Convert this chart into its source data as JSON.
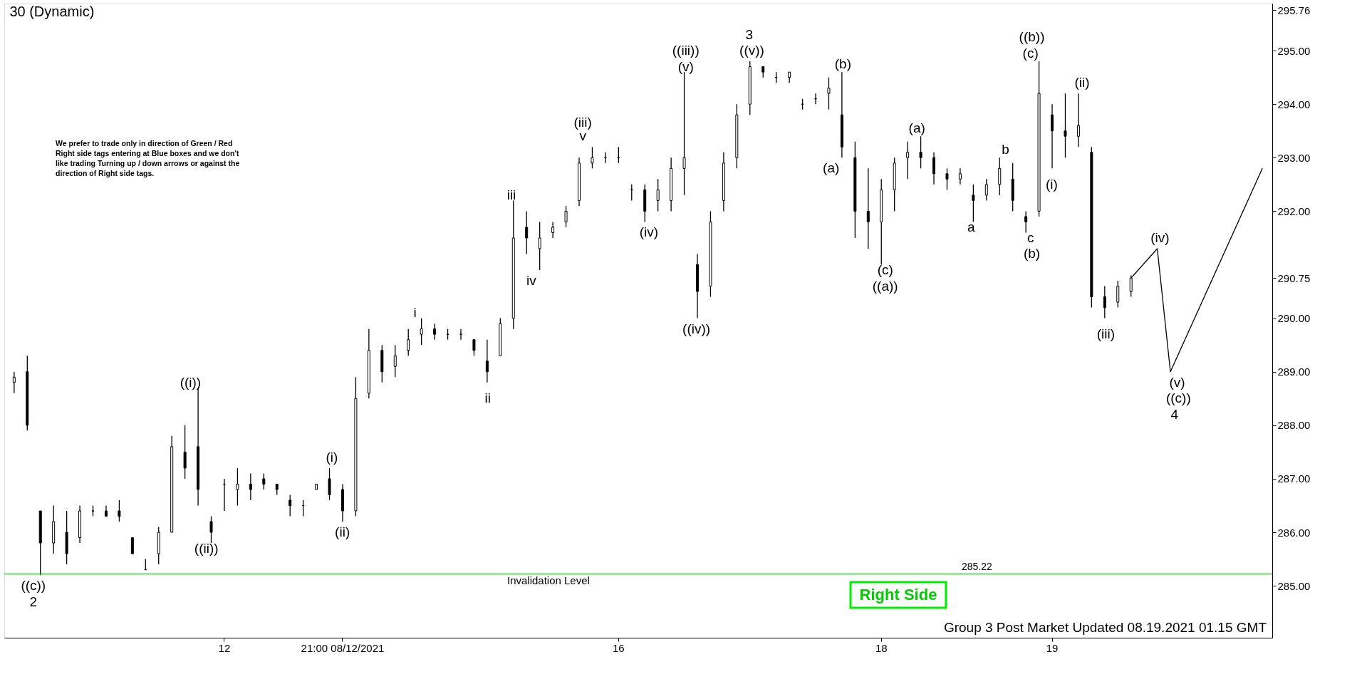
{
  "chart_data": {
    "type": "candlestick",
    "title": "30 (Dynamic)",
    "color": "#000000",
    "categories": [
      null,
      null,
      null,
      null,
      null,
      null,
      null,
      null,
      null,
      null,
      null,
      null,
      null,
      null,
      null,
      null,
      "12",
      null,
      null,
      null,
      null,
      null,
      null,
      null,
      null,
      "21:00 08/12/2021",
      null,
      null,
      null,
      null,
      null,
      null,
      null,
      null,
      null,
      null,
      null,
      null,
      null,
      null,
      null,
      null,
      null,
      null,
      null,
      null,
      "16",
      null,
      null,
      null,
      null,
      null,
      null,
      null,
      null,
      null,
      null,
      null,
      null,
      null,
      null,
      null,
      null,
      null,
      null,
      null,
      "18",
      null,
      null,
      null,
      null,
      null,
      null,
      null,
      null,
      null,
      null,
      null,
      null,
      "19",
      null,
      null,
      null,
      null,
      null,
      null,
      null,
      null,
      null,
      null,
      null,
      null,
      null,
      null,
      null,
      null
    ],
    "ohlc": [
      [
        288.8,
        289.0,
        288.6,
        288.9
      ],
      [
        289.0,
        289.3,
        287.9,
        288.0
      ],
      [
        286.4,
        286.4,
        285.2,
        285.8
      ],
      [
        285.8,
        286.5,
        285.6,
        286.2
      ],
      [
        286.0,
        286.4,
        285.4,
        285.6
      ],
      [
        285.9,
        286.5,
        285.8,
        286.4
      ],
      [
        286.4,
        286.5,
        286.3,
        286.4
      ],
      [
        286.4,
        286.5,
        286.3,
        286.3
      ],
      [
        286.4,
        286.6,
        286.2,
        286.3
      ],
      [
        285.9,
        285.9,
        285.6,
        285.6
      ],
      [
        285.3,
        285.5,
        285.3,
        285.3
      ],
      [
        285.6,
        286.1,
        285.4,
        286.0
      ],
      [
        286.0,
        287.8,
        286.0,
        287.6
      ],
      [
        287.5,
        288.0,
        287.0,
        287.2
      ],
      [
        287.6,
        288.7,
        286.5,
        286.8
      ],
      [
        286.2,
        286.3,
        285.8,
        286.0
      ],
      [
        286.9,
        287.0,
        286.4,
        286.9
      ],
      [
        286.8,
        287.2,
        286.5,
        286.9
      ],
      [
        286.9,
        287.1,
        286.6,
        286.8
      ],
      [
        287.0,
        287.1,
        286.8,
        286.9
      ],
      [
        286.9,
        286.9,
        286.7,
        286.8
      ],
      [
        286.6,
        286.7,
        286.3,
        286.5
      ],
      [
        286.5,
        286.6,
        286.3,
        286.5
      ],
      [
        286.8,
        286.9,
        286.8,
        286.9
      ],
      [
        287.0,
        287.2,
        286.6,
        286.7
      ],
      [
        286.8,
        286.9,
        286.2,
        286.4
      ],
      [
        286.4,
        288.9,
        286.3,
        288.5
      ],
      [
        288.6,
        289.8,
        288.5,
        289.4
      ],
      [
        289.4,
        289.5,
        288.8,
        289.0
      ],
      [
        289.1,
        289.5,
        288.9,
        289.3
      ],
      [
        289.4,
        289.8,
        289.3,
        289.6
      ],
      [
        289.7,
        290.0,
        289.5,
        289.8
      ],
      [
        289.8,
        289.9,
        289.6,
        289.7
      ],
      [
        289.7,
        289.8,
        289.6,
        289.7
      ],
      [
        289.7,
        289.8,
        289.6,
        289.7
      ],
      [
        289.6,
        289.6,
        289.3,
        289.4
      ],
      [
        289.2,
        289.6,
        288.8,
        289.0
      ],
      [
        289.3,
        290.0,
        289.3,
        289.9
      ],
      [
        290.0,
        292.2,
        289.8,
        291.5
      ],
      [
        291.7,
        292.0,
        291.2,
        291.5
      ],
      [
        291.3,
        291.8,
        290.9,
        291.5
      ],
      [
        291.6,
        291.8,
        291.5,
        291.7
      ],
      [
        291.8,
        292.1,
        291.7,
        292.0
      ],
      [
        292.2,
        293.0,
        292.1,
        292.9
      ],
      [
        292.9,
        293.2,
        292.8,
        293.0
      ],
      [
        293.0,
        293.1,
        292.9,
        293.0
      ],
      [
        293.0,
        293.2,
        292.9,
        293.0
      ],
      [
        292.4,
        292.5,
        292.2,
        292.4
      ],
      [
        292.4,
        292.5,
        291.8,
        292.0
      ],
      [
        292.2,
        292.6,
        292.0,
        292.4
      ],
      [
        292.2,
        293.0,
        292.0,
        292.8
      ],
      [
        292.8,
        294.6,
        292.3,
        293.0
      ],
      [
        291.0,
        291.2,
        290.0,
        290.5
      ],
      [
        290.6,
        292.0,
        290.4,
        291.8
      ],
      [
        292.2,
        293.1,
        292.0,
        292.9
      ],
      [
        293.0,
        294.0,
        292.8,
        293.8
      ],
      [
        294.0,
        294.8,
        293.8,
        294.7
      ],
      [
        294.7,
        294.7,
        294.5,
        294.6
      ],
      [
        294.5,
        294.6,
        294.4,
        294.5
      ],
      [
        294.5,
        294.6,
        294.4,
        294.6
      ],
      [
        294.0,
        294.1,
        293.9,
        294.0
      ],
      [
        294.1,
        294.2,
        294.0,
        294.1
      ],
      [
        294.2,
        294.5,
        293.9,
        294.3
      ],
      [
        293.8,
        294.6,
        293.0,
        293.2
      ],
      [
        293.0,
        293.3,
        291.5,
        292.0
      ],
      [
        292.0,
        292.8,
        291.3,
        291.8
      ],
      [
        291.8,
        292.6,
        291.0,
        292.4
      ],
      [
        292.4,
        293.0,
        292.0,
        292.9
      ],
      [
        293.0,
        293.3,
        292.6,
        293.1
      ],
      [
        293.1,
        293.4,
        292.8,
        293.0
      ],
      [
        293.0,
        293.1,
        292.5,
        292.7
      ],
      [
        292.7,
        292.8,
        292.4,
        292.6
      ],
      [
        292.6,
        292.8,
        292.5,
        292.7
      ],
      [
        292.3,
        292.5,
        291.8,
        292.2
      ],
      [
        292.3,
        292.6,
        292.2,
        292.5
      ],
      [
        292.5,
        293.0,
        292.3,
        292.8
      ],
      [
        292.6,
        292.9,
        292.0,
        292.2
      ],
      [
        291.9,
        292.0,
        291.6,
        291.8
      ],
      [
        292.0,
        294.8,
        291.9,
        294.2
      ],
      [
        293.8,
        294.0,
        292.8,
        293.5
      ],
      [
        293.5,
        294.2,
        293.0,
        293.4
      ],
      [
        293.4,
        294.2,
        293.2,
        293.6
      ],
      [
        293.1,
        293.2,
        290.2,
        290.4
      ],
      [
        290.4,
        290.6,
        290.0,
        290.2
      ],
      [
        290.3,
        290.7,
        290.2,
        290.6
      ],
      [
        290.5,
        290.8,
        290.4,
        290.75
      ],
      null,
      null,
      null,
      null,
      null,
      null,
      null,
      null,
      null,
      null
    ],
    "series": [
      {
        "type": "line",
        "color": "#000000",
        "values": [
          null,
          null,
          null,
          null,
          null,
          null,
          null,
          null,
          null,
          null,
          null,
          null,
          null,
          null,
          null,
          null,
          null,
          null,
          null,
          null,
          null,
          null,
          null,
          null,
          null,
          null,
          null,
          null,
          null,
          null,
          null,
          null,
          null,
          null,
          null,
          null,
          null,
          null,
          null,
          null,
          null,
          null,
          null,
          null,
          null,
          null,
          null,
          null,
          null,
          null,
          null,
          null,
          null,
          null,
          null,
          null,
          null,
          null,
          null,
          null,
          null,
          null,
          null,
          null,
          null,
          null,
          null,
          null,
          null,
          null,
          null,
          null,
          null,
          null,
          null,
          null,
          null,
          null,
          null,
          null,
          null,
          null,
          null,
          null,
          null,
          290.75,
          null,
          291.3,
          289.0,
          null,
          null,
          null,
          null,
          null,
          null,
          292.8
        ]
      }
    ],
    "ylim": [
      284.03,
      295.88
    ],
    "yticks": [
      {
        "value": 285,
        "label": "285.00"
      },
      {
        "value": 286,
        "label": "286.00"
      },
      {
        "value": 287,
        "label": "287.00"
      },
      {
        "value": 288,
        "label": "288.00"
      },
      {
        "value": 289,
        "label": "289.00"
      },
      {
        "value": 290,
        "label": "290.00"
      },
      {
        "value": 290.75,
        "label": "290.75"
      },
      {
        "value": 292,
        "label": "292.00"
      },
      {
        "value": 293,
        "label": "293.00"
      },
      {
        "value": 294,
        "label": "294.00"
      },
      {
        "value": 295,
        "label": "295.00"
      },
      {
        "value": 295.76,
        "label": "295.76"
      }
    ],
    "ref_lines": [
      {
        "axis": "y",
        "value": 285.22,
        "label": "285.22",
        "color": "#00dd00"
      }
    ],
    "grid": false,
    "annotations": [
      "We prefer to trade only in direction of Green / Red Right side tags entering at Blue boxes and we don't like trading Turning up / down arrows or against the direction of Right side tags.",
      "Right Side",
      "Group 3 Post Market Updated 08.19.2021 01.15 GMT",
      "Invalidation Level",
      "((c))",
      "2",
      "((i))",
      "((ii))",
      "(i)",
      "(ii)",
      "i",
      "ii",
      "iii",
      "iv",
      "(iii)",
      "v",
      "(iv)",
      "((iii))",
      "(v)",
      "((iv))",
      "3",
      "((v))",
      "(b)",
      "(a)",
      "(a)",
      "(c)",
      "((a))",
      "a",
      "b",
      "c",
      "(b)",
      "((b))",
      "(c)",
      "(ii)",
      "(i)",
      "(iii)",
      "(iv)",
      "(v)",
      "((c))",
      "4"
    ]
  }
}
